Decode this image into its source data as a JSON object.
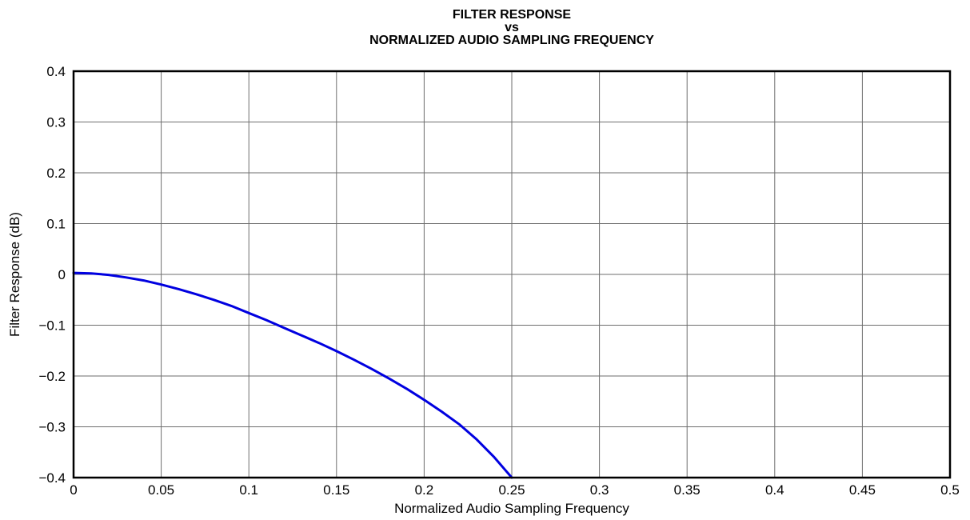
{
  "chart_data": {
    "type": "line",
    "title": [
      "FILTER RESPONSE",
      "vs",
      "NORMALIZED AUDIO SAMPLING FREQUENCY"
    ],
    "xlabel": "Normalized Audio Sampling Frequency",
    "ylabel": "Filter Response (dB)",
    "xlim": [
      0,
      0.5
    ],
    "ylim": [
      -0.4,
      0.4
    ],
    "grid": true,
    "x_ticks": [
      0,
      0.05,
      0.1,
      0.15,
      0.2,
      0.25,
      0.3,
      0.35,
      0.4,
      0.45,
      0.5
    ],
    "x_tick_labels": [
      "0",
      "0.05",
      "0.1",
      "0.15",
      "0.2",
      "0.25",
      "0.3",
      "0.35",
      "0.4",
      "0.45",
      "0.5"
    ],
    "y_ticks": [
      0.4,
      0.3,
      0.2,
      0.1,
      0,
      -0.1,
      -0.2,
      -0.3,
      -0.4
    ],
    "y_tick_labels": [
      "0.4",
      "0.3",
      "0.2",
      "0.1",
      "0",
      "−0.1",
      "−0.2",
      "−0.3",
      "−0.4"
    ],
    "series": [
      {
        "color": "#0000e0",
        "x": [
          0,
          0.01,
          0.02,
          0.03,
          0.04,
          0.05,
          0.06,
          0.07,
          0.08,
          0.09,
          0.1,
          0.11,
          0.12,
          0.13,
          0.14,
          0.15,
          0.16,
          0.17,
          0.18,
          0.19,
          0.2,
          0.21,
          0.22,
          0.23,
          0.24,
          0.25
        ],
        "y": [
          0.003,
          0.002,
          -0.001,
          -0.006,
          -0.012,
          -0.02,
          -0.029,
          -0.039,
          -0.05,
          -0.062,
          -0.076,
          -0.09,
          -0.105,
          -0.12,
          -0.135,
          -0.151,
          -0.168,
          -0.186,
          -0.205,
          -0.225,
          -0.247,
          -0.27,
          -0.295,
          -0.325,
          -0.36,
          -0.4
        ]
      }
    ]
  }
}
